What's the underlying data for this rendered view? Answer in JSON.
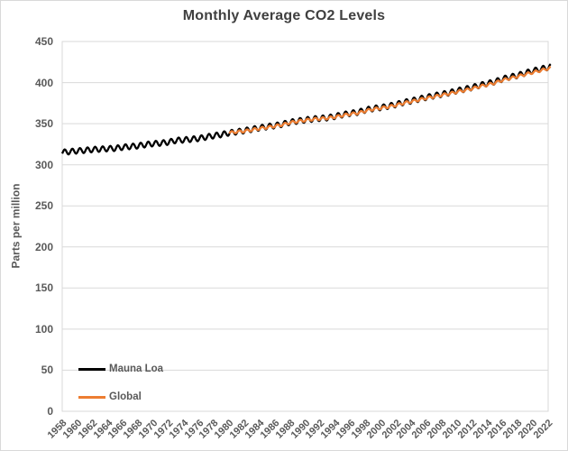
{
  "title": "Monthly Average CO2 Levels",
  "y_axis": {
    "title": "Parts per million",
    "min": 0,
    "max": 450,
    "ticks": [
      0,
      50,
      100,
      150,
      200,
      250,
      300,
      350,
      400,
      450
    ]
  },
  "x_axis": {
    "tick_labels": [
      "1958",
      "1960",
      "1962",
      "1964",
      "1966",
      "1968",
      "1970",
      "1972",
      "1974",
      "1976",
      "1978",
      "1980",
      "1982",
      "1984",
      "1986",
      "1988",
      "1990",
      "1992",
      "1994",
      "1996",
      "1998",
      "2000",
      "2002",
      "2004",
      "2006",
      "2008",
      "2010",
      "2012",
      "2014",
      "2016",
      "2018",
      "2020",
      "2022"
    ]
  },
  "legend": {
    "position": "inside-bottom-left",
    "items": [
      {
        "label": "Mauna Loa",
        "color": "#000000"
      },
      {
        "label": "Global",
        "color": "#ED7D31"
      }
    ]
  },
  "colors": {
    "background": "#FFFFFF",
    "gridline": "#D9D9D9",
    "plot_border": "#D9D9D9",
    "axis_text": "#595959",
    "title_text": "#404040"
  },
  "chart_data": {
    "type": "line",
    "title": "Monthly Average CO2 Levels",
    "xlabel": "",
    "ylabel": "Parts per million",
    "ylim": [
      0,
      450
    ],
    "x_range": [
      1958,
      2022
    ],
    "x_tick_step_years": 2,
    "grid": "horizontal",
    "legend_position": "inside-bottom-left",
    "series": [
      {
        "name": "Mauna Loa",
        "color": "#000000",
        "start_year": 1958,
        "end_year": 2022,
        "seasonal_amplitude_ppm": 3.2,
        "annual_mean_ppm": [
          315.2,
          316.0,
          316.9,
          317.6,
          318.5,
          319.0,
          319.6,
          320.0,
          321.4,
          322.2,
          323.0,
          324.6,
          325.7,
          326.3,
          327.5,
          329.7,
          330.2,
          331.1,
          332.0,
          333.8,
          335.4,
          336.8,
          338.8,
          340.1,
          341.5,
          343.2,
          344.9,
          346.4,
          347.6,
          349.3,
          351.7,
          353.2,
          354.5,
          355.7,
          356.5,
          357.2,
          359.0,
          361.0,
          362.7,
          363.9,
          366.8,
          368.5,
          369.7,
          371.3,
          373.4,
          376.0,
          377.7,
          380.0,
          382.1,
          384.0,
          385.8,
          387.6,
          390.1,
          391.9,
          394.1,
          396.7,
          398.8,
          401.0,
          404.4,
          406.8,
          408.7,
          411.7,
          414.2,
          416.4,
          418.5
        ]
      },
      {
        "name": "Global",
        "color": "#ED7D31",
        "start_year": 1980,
        "end_year": 2022,
        "seasonal_amplitude_ppm": 1.5,
        "annual_mean_ppm": [
          338.9,
          340.1,
          340.9,
          342.5,
          344.1,
          345.5,
          347.0,
          348.7,
          351.2,
          352.8,
          354.1,
          355.4,
          356.1,
          356.8,
          358.3,
          360.2,
          361.9,
          363.0,
          365.7,
          367.8,
          369.0,
          370.6,
          372.6,
          375.2,
          377.0,
          379.0,
          381.2,
          382.9,
          385.0,
          386.5,
          388.8,
          390.6,
          392.7,
          395.4,
          397.3,
          399.7,
          403.1,
          405.2,
          407.6,
          410.1,
          412.4,
          414.7,
          417.1
        ]
      }
    ]
  }
}
